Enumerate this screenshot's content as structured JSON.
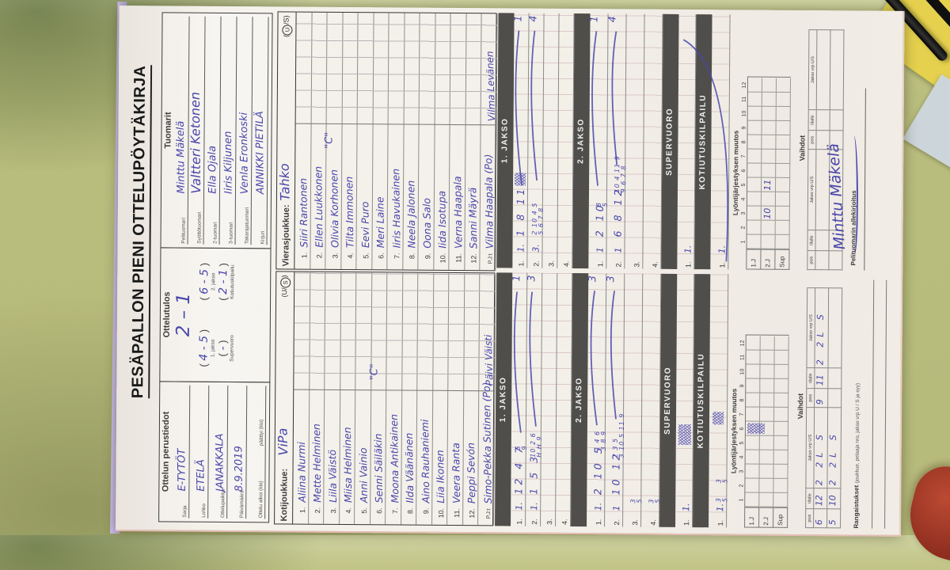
{
  "colors": {
    "ink": "#4946ab",
    "table": "#b5b97a",
    "bar": "#504e4b",
    "paper": "#f3f0e9",
    "pad_edge": "#c7b7e4",
    "note": "#e6d14e",
    "blob": "#a93b2d"
  },
  "title": "PESÄPALLON PIENI OTTELUPÖYTÄKIRJA",
  "perustiedot": {
    "header": "Ottelun perustiedot",
    "rows": [
      {
        "label": "Sarja",
        "value": "E-TYTÖT"
      },
      {
        "label": "Lohko",
        "value": "ETELÄ"
      },
      {
        "label": "Ottelupaikka",
        "value": "JANAKKALA"
      },
      {
        "label": "Päivämäärä",
        "value": "8.9.2019"
      },
      {
        "label": "Ottelu alkoi (klo)",
        "value": "",
        "label2": "päättyi (klo)"
      }
    ]
  },
  "ottelutulos": {
    "header": "Ottelutulos",
    "total": "2 – 1",
    "pairs": [
      {
        "score": "4 - 5",
        "label": "1. jakso"
      },
      {
        "score": "6 - 5",
        "label": "2. jakso"
      },
      {
        "score": "-",
        "label": "Supervuoro"
      },
      {
        "score": "2 - 1",
        "label": "Kotiutuskilpailu"
      }
    ]
  },
  "tuomarit": {
    "header": "Tuomarit",
    "rows": [
      {
        "label": "Pelituomari",
        "value": "Minttu Mäkelä"
      },
      {
        "label": "Syöttötuomari",
        "value": "Valtteri Ketonen",
        "big": true
      },
      {
        "label": "2-tuomari",
        "value": "Ella Ojala"
      },
      {
        "label": "3-tuomari",
        "value": "Iiris Kiljunen"
      },
      {
        "label": "Takarajatuomari",
        "value": "Venla Eronkoski"
      },
      {
        "label": "Kirjuri",
        "value": "ANNIKKI PIETILÄ"
      }
    ]
  },
  "roster": {
    "home": {
      "team_label": "Kotijoukkue:",
      "team_name": "ViPa",
      "us_circle": "S",
      "players": [
        "Aliina Nurmi",
        "Mette Helminen",
        "Liila Väistö",
        "Miisa Helminen",
        "Anni Vainio",
        "Senni Säiläkin",
        "Moona Antikainen",
        "Ilda Väänänen",
        "Aino Rauhaniemi",
        "Liia Ikonen",
        "Veera Ranta",
        "Peppi Sevón"
      ],
      "captain_row": 6,
      "captain_mark": "\"C\"",
      "pj_label": "P.J:t",
      "pj1": "Simo-Pekka Sutinen (Po)",
      "pj2": "Päivi Väisti"
    },
    "away": {
      "team_label": "Vierasjoukkue:",
      "team_name": "Tahko",
      "us_circle": "U",
      "players": [
        "Siiri Rantonen",
        "Ellen Luukkonen",
        "Olivia Korhonen",
        "Tilta Immonen",
        "Eevi Puro",
        "Meri Laine",
        "Iiris Havukainen",
        "Neela Jalonen",
        "Oona Salo",
        "Iida Isotupa",
        "Verna Haapala",
        "Sanni Mäyrä"
      ],
      "captain_row": 3,
      "captain_mark": "\"C\"",
      "pj_label": "P.J:t",
      "pj1": "Vilma Haapala (Po)",
      "pj2": "Vilma Levänen"
    }
  },
  "scoring": {
    "home": {
      "jakso1": {
        "header": "1. JAKSO",
        "rows": [
          {
            "n": "1.",
            "sub": "1.",
            "seq": "12 4 7",
            "stack_top": "5",
            "stack_bottom": "9",
            "total": "1",
            "line": true
          },
          {
            "n": "2.",
            "sub": "1.",
            "seq": "1 5 3",
            "stack_top": "10 2 6",
            "stack_bottom": "H H 9",
            "total": "3",
            "line": true
          },
          {
            "n": "3."
          },
          {
            "n": "4."
          }
        ]
      },
      "jakso2": {
        "header": "2. JAKSO",
        "rows": [
          {
            "n": "1.",
            "sub": "1.",
            "seq": "2 10 5",
            "stack_top": "1 4 6",
            "stack_bottom": "3 8 9",
            "total": "3",
            "line": true
          },
          {
            "n": "2.",
            "sub": "1",
            "seq": "10 12",
            "stack_top": "2 3 5",
            "stack_bottom": "3 10 5 11 9",
            "total": "3",
            "line": true
          },
          {
            "n": "3.",
            "frac_top": "3",
            "frac_bottom": "5"
          },
          {
            "n": "4.",
            "frac_top": "3",
            "frac_bottom": "5"
          }
        ]
      },
      "supervuoro": {
        "header": "SUPERVUORO",
        "row": {
          "n": "1.",
          "sub": "1.",
          "scribble": true
        }
      },
      "kotiutus": {
        "header": "KOTIUTUSKILPAILU",
        "row": {
          "n": "1.",
          "sub": "1.",
          "fracs": [
            [
              "3",
              "5"
            ],
            [
              "3",
              "5"
            ]
          ],
          "scribble": true
        }
      },
      "muutos": {
        "header": "Lyöntijärjestyksen muutos",
        "cols": [
          "1",
          "2",
          "3",
          "4",
          "5",
          "6",
          "7",
          "8",
          "9",
          "10",
          "11",
          "12"
        ],
        "row_labels": [
          "1.J",
          "2.J",
          "Sup"
        ],
        "cells": [
          [
            "",
            "",
            "",
            "",
            "",
            "",
            "",
            "",
            "",
            "",
            "",
            ""
          ],
          [
            "",
            "",
            "",
            "",
            "",
            "",
            "",
            "",
            "",
            "",
            "",
            ""
          ],
          [
            "",
            "",
            "",
            "",
            "",
            "",
            "",
            "",
            "",
            "",
            "",
            ""
          ]
        ],
        "scribble": {
          "row": 0,
          "col": 5
        }
      },
      "vaihdot": {
        "header": "Vaihdot",
        "col_labels": [
          "pois",
          "tilalle",
          "Jakso vrp U/S",
          "pois",
          "tilalle",
          "Jakso vrp U/S"
        ],
        "rows": [
          [
            "6",
            "12",
            "2 2L S",
            "9",
            "11",
            "2 2L S"
          ],
          [
            "5",
            "10",
            "2 2L S",
            "",
            "",
            ""
          ]
        ]
      },
      "bottom_label": "Rangaistukset",
      "bottom_note": "(joukkue, pelaaja nro, jakso vrp U / S ja syy)"
    },
    "away": {
      "jakso1": {
        "header": "1. JAKSO",
        "rows": [
          {
            "n": "1.",
            "sub": "1.",
            "seq": "1 8 11",
            "scribble": true,
            "total": "1",
            "line": true
          },
          {
            "n": "2.",
            "sub": "3.",
            "stack_top": "2 10 4 5",
            "stack_bottom": "5 6 7 8",
            "total": "4",
            "line": true
          },
          {
            "n": "3."
          },
          {
            "n": "4."
          }
        ]
      },
      "jakso2": {
        "header": "2. JAKSO",
        "rows": [
          {
            "n": "1.",
            "sub": "1",
            "seq": "2 10",
            "stack_top": "8",
            "stack_bottom": "5",
            "total": "1",
            "line": true
          },
          {
            "n": "2.",
            "sub": "1",
            "seq": "6 8 12",
            "stack_top": "10 4 11 9",
            "stack_bottom": "9 6 7 8",
            "total": "4",
            "line": true
          },
          {
            "n": "3."
          },
          {
            "n": "4."
          }
        ]
      },
      "supervuoro": {
        "header": "SUPERVUORO",
        "row": {
          "n": "1.",
          "sub": "1."
        }
      },
      "kotiutus": {
        "header": "KOTIUTUSKILPAILU",
        "row": {
          "n": "1.",
          "sub": "1."
        },
        "big_curve": true
      },
      "muutos": {
        "header": "Lyöntijärjestyksen muutos",
        "cols": [
          "1",
          "2",
          "3",
          "4",
          "5",
          "6",
          "7",
          "8",
          "9",
          "10",
          "11",
          "12"
        ],
        "row_labels": [
          "1.J",
          "2.J",
          "Sup"
        ],
        "cells": [
          [
            "",
            "",
            "",
            "",
            "",
            "",
            "",
            "",
            "",
            "",
            "",
            ""
          ],
          [
            "",
            "",
            "10",
            "",
            "11",
            "",
            "",
            "",
            "",
            "",
            "",
            ""
          ],
          [
            "",
            "",
            "",
            "",
            "",
            "",
            "",
            "",
            "",
            "",
            "",
            ""
          ]
        ]
      },
      "vaihdot": {
        "header": "Vaihdot",
        "col_labels": [
          "pois",
          "tilalle",
          "Jakso vrp U/S",
          "pois",
          "tilalle",
          "Jakso vrp U/S"
        ],
        "rows": [
          [
            "",
            "",
            "",
            "",
            "",
            ""
          ],
          [
            "",
            "",
            "",
            "",
            "",
            ""
          ]
        ]
      },
      "bottom_label": "Pelituomarin allekirjoitus",
      "signature": "Minttu Mäkelä"
    }
  }
}
